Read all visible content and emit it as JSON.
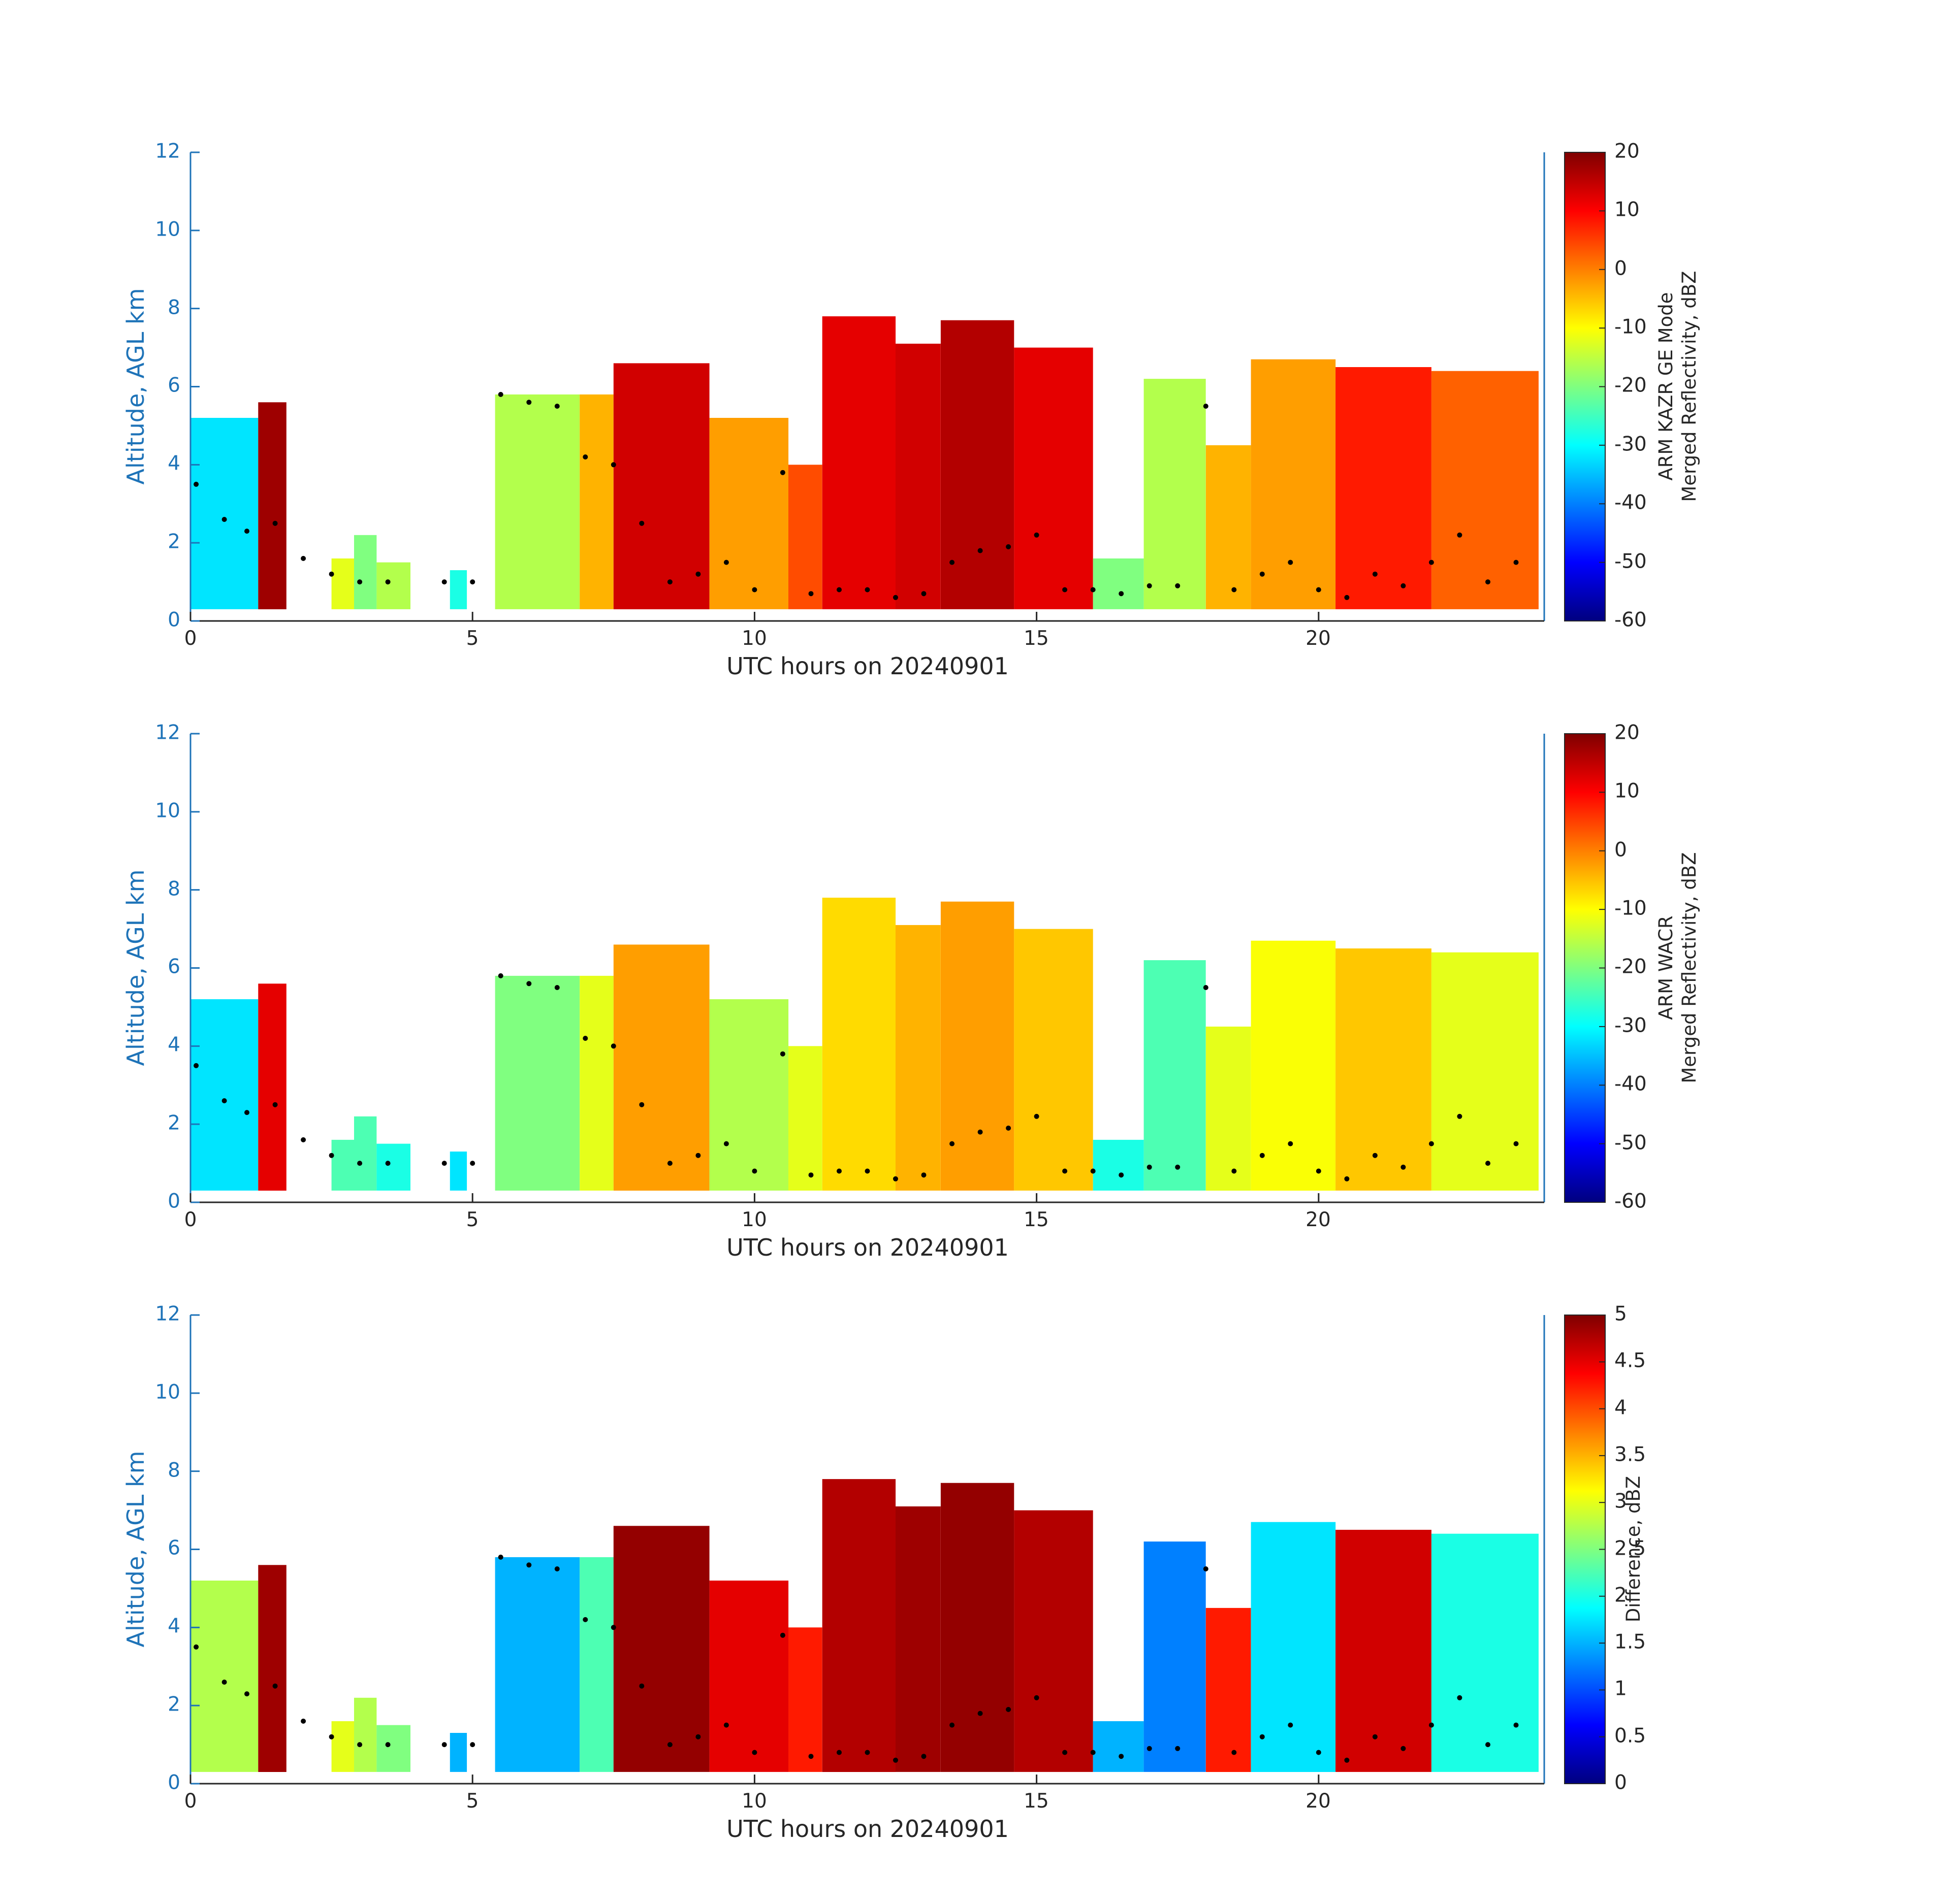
{
  "colors": {
    "axis_y": "#1e73b8",
    "axis_x": "#262626",
    "cloud_base_marker": "#000000",
    "colormap": "jet"
  },
  "chart_data": [
    {
      "type": "heatmap",
      "panel": "top",
      "xlabel": "UTC hours on 20240901",
      "ylabel": "Altitude, AGL km",
      "xlim": [
        0,
        24
      ],
      "ylim": [
        0,
        12
      ],
      "xticks": [
        "0",
        "5",
        "10",
        "15",
        "20"
      ],
      "yticks": [
        "0",
        "2",
        "4",
        "6",
        "8",
        "10",
        "12"
      ],
      "colorbar": {
        "label_lines": [
          "ARM KAZR GE Mode",
          "Merged Reflectivity, dBZ"
        ],
        "range": [
          -60,
          20
        ],
        "ticks": [
          "20",
          "10",
          "0",
          "-10",
          "-20",
          "-30",
          "-40",
          "-50",
          "-60"
        ]
      },
      "cloud_segments": [
        {
          "x": [
            0.0,
            1.2
          ],
          "top_km": 5.2,
          "value": 0.35
        },
        {
          "x": [
            1.2,
            1.7
          ],
          "top_km": 5.6,
          "value": 0.97
        },
        {
          "x": [
            2.5,
            2.9
          ],
          "top_km": 1.6,
          "value": 0.6
        },
        {
          "x": [
            2.9,
            3.3
          ],
          "top_km": 2.2,
          "value": 0.5
        },
        {
          "x": [
            3.3,
            3.9
          ],
          "top_km": 1.5,
          "value": 0.55
        },
        {
          "x": [
            4.6,
            4.9
          ],
          "top_km": 1.3,
          "value": 0.4
        },
        {
          "x": [
            5.4,
            6.9
          ],
          "top_km": 5.8,
          "value": 0.55
        },
        {
          "x": [
            6.9,
            7.5
          ],
          "top_km": 5.8,
          "value": 0.7
        },
        {
          "x": [
            7.5,
            9.2
          ],
          "top_km": 6.6,
          "value": 0.92
        },
        {
          "x": [
            9.2,
            10.6
          ],
          "top_km": 5.2,
          "value": 0.72
        },
        {
          "x": [
            10.6,
            11.2
          ],
          "top_km": 4.0,
          "value": 0.8
        },
        {
          "x": [
            11.2,
            12.5
          ],
          "top_km": 7.8,
          "value": 0.9
        },
        {
          "x": [
            12.5,
            13.3
          ],
          "top_km": 7.1,
          "value": 0.92
        },
        {
          "x": [
            13.3,
            14.6
          ],
          "top_km": 7.7,
          "value": 0.95
        },
        {
          "x": [
            14.6,
            16.0
          ],
          "top_km": 7.0,
          "value": 0.9
        },
        {
          "x": [
            16.0,
            16.9
          ],
          "top_km": 1.6,
          "value": 0.5
        },
        {
          "x": [
            16.9,
            18.0
          ],
          "top_km": 6.2,
          "value": 0.55
        },
        {
          "x": [
            18.0,
            18.8
          ],
          "top_km": 4.5,
          "value": 0.7
        },
        {
          "x": [
            18.8,
            20.3
          ],
          "top_km": 6.7,
          "value": 0.72
        },
        {
          "x": [
            20.3,
            22.0
          ],
          "top_km": 6.5,
          "value": 0.85
        },
        {
          "x": [
            22.0,
            23.9
          ],
          "top_km": 6.4,
          "value": 0.78
        }
      ]
    },
    {
      "type": "heatmap",
      "panel": "middle",
      "xlabel": "UTC hours on 20240901",
      "ylabel": "Altitude, AGL km",
      "xlim": [
        0,
        24
      ],
      "ylim": [
        0,
        12
      ],
      "xticks": [
        "0",
        "5",
        "10",
        "15",
        "20"
      ],
      "yticks": [
        "0",
        "2",
        "4",
        "6",
        "8",
        "10",
        "12"
      ],
      "colorbar": {
        "label_lines": [
          "ARM WACR",
          "Merged Reflectivity, dBZ"
        ],
        "range": [
          -60,
          20
        ],
        "ticks": [
          "20",
          "10",
          "0",
          "-10",
          "-20",
          "-30",
          "-40",
          "-50",
          "-60"
        ]
      },
      "cloud_segments": [
        {
          "x": [
            0.0,
            1.2
          ],
          "top_km": 5.2,
          "value": 0.35
        },
        {
          "x": [
            1.2,
            1.7
          ],
          "top_km": 5.6,
          "value": 0.9
        },
        {
          "x": [
            2.5,
            2.9
          ],
          "top_km": 1.6,
          "value": 0.45
        },
        {
          "x": [
            2.9,
            3.3
          ],
          "top_km": 2.2,
          "value": 0.45
        },
        {
          "x": [
            3.3,
            3.9
          ],
          "top_km": 1.5,
          "value": 0.4
        },
        {
          "x": [
            4.6,
            4.9
          ],
          "top_km": 1.3,
          "value": 0.35
        },
        {
          "x": [
            5.4,
            6.9
          ],
          "top_km": 5.8,
          "value": 0.5
        },
        {
          "x": [
            6.9,
            7.5
          ],
          "top_km": 5.8,
          "value": 0.6
        },
        {
          "x": [
            7.5,
            9.2
          ],
          "top_km": 6.6,
          "value": 0.72
        },
        {
          "x": [
            9.2,
            10.6
          ],
          "top_km": 5.2,
          "value": 0.55
        },
        {
          "x": [
            10.6,
            11.2
          ],
          "top_km": 4.0,
          "value": 0.6
        },
        {
          "x": [
            11.2,
            12.5
          ],
          "top_km": 7.8,
          "value": 0.66
        },
        {
          "x": [
            12.5,
            13.3
          ],
          "top_km": 7.1,
          "value": 0.7
        },
        {
          "x": [
            13.3,
            14.6
          ],
          "top_km": 7.7,
          "value": 0.72
        },
        {
          "x": [
            14.6,
            16.0
          ],
          "top_km": 7.0,
          "value": 0.68
        },
        {
          "x": [
            16.0,
            16.9
          ],
          "top_km": 1.6,
          "value": 0.4
        },
        {
          "x": [
            16.9,
            18.0
          ],
          "top_km": 6.2,
          "value": 0.45
        },
        {
          "x": [
            18.0,
            18.8
          ],
          "top_km": 4.5,
          "value": 0.6
        },
        {
          "x": [
            18.8,
            20.3
          ],
          "top_km": 6.7,
          "value": 0.62
        },
        {
          "x": [
            20.3,
            22.0
          ],
          "top_km": 6.5,
          "value": 0.68
        },
        {
          "x": [
            22.0,
            23.9
          ],
          "top_km": 6.4,
          "value": 0.6
        }
      ]
    },
    {
      "type": "heatmap",
      "panel": "bottom",
      "xlabel": "UTC hours on 20240901",
      "ylabel": "Altitude, AGL km",
      "xlim": [
        0,
        24
      ],
      "ylim": [
        0,
        12
      ],
      "xticks": [
        "0",
        "5",
        "10",
        "15",
        "20"
      ],
      "yticks": [
        "0",
        "2",
        "4",
        "6",
        "8",
        "10",
        "12"
      ],
      "colorbar": {
        "label_lines": [
          "Difference, dBZ"
        ],
        "range": [
          0,
          5
        ],
        "ticks": [
          "5",
          "4.5",
          "4",
          "3.5",
          "3",
          "2.5",
          "2",
          "1.5",
          "1",
          "0.5",
          "0"
        ]
      },
      "cloud_segments": [
        {
          "x": [
            0.0,
            1.2
          ],
          "top_km": 5.2,
          "value": 0.55
        },
        {
          "x": [
            1.2,
            1.7
          ],
          "top_km": 5.6,
          "value": 0.97
        },
        {
          "x": [
            2.5,
            2.9
          ],
          "top_km": 1.6,
          "value": 0.6
        },
        {
          "x": [
            2.9,
            3.3
          ],
          "top_km": 2.2,
          "value": 0.55
        },
        {
          "x": [
            3.3,
            3.9
          ],
          "top_km": 1.5,
          "value": 0.5
        },
        {
          "x": [
            4.6,
            4.9
          ],
          "top_km": 1.3,
          "value": 0.3
        },
        {
          "x": [
            5.4,
            6.9
          ],
          "top_km": 5.8,
          "value": 0.3
        },
        {
          "x": [
            6.9,
            7.5
          ],
          "top_km": 5.8,
          "value": 0.45
        },
        {
          "x": [
            7.5,
            9.2
          ],
          "top_km": 6.6,
          "value": 0.98
        },
        {
          "x": [
            9.2,
            10.6
          ],
          "top_km": 5.2,
          "value": 0.9
        },
        {
          "x": [
            10.6,
            11.2
          ],
          "top_km": 4.0,
          "value": 0.85
        },
        {
          "x": [
            11.2,
            12.5
          ],
          "top_km": 7.8,
          "value": 0.95
        },
        {
          "x": [
            12.5,
            13.3
          ],
          "top_km": 7.1,
          "value": 0.97
        },
        {
          "x": [
            13.3,
            14.6
          ],
          "top_km": 7.7,
          "value": 0.98
        },
        {
          "x": [
            14.6,
            16.0
          ],
          "top_km": 7.0,
          "value": 0.95
        },
        {
          "x": [
            16.0,
            16.9
          ],
          "top_km": 1.6,
          "value": 0.3
        },
        {
          "x": [
            16.9,
            18.0
          ],
          "top_km": 6.2,
          "value": 0.25
        },
        {
          "x": [
            18.0,
            18.8
          ],
          "top_km": 4.5,
          "value": 0.85
        },
        {
          "x": [
            18.8,
            20.3
          ],
          "top_km": 6.7,
          "value": 0.35
        },
        {
          "x": [
            20.3,
            22.0
          ],
          "top_km": 6.5,
          "value": 0.92
        },
        {
          "x": [
            22.0,
            23.9
          ],
          "top_km": 6.4,
          "value": 0.4
        }
      ]
    }
  ],
  "cloud_base_km": {
    "x": [
      0.1,
      0.6,
      1.0,
      1.5,
      2.0,
      2.5,
      3.0,
      3.5,
      4.5,
      5.0,
      5.5,
      6.0,
      6.5,
      7.0,
      7.5,
      8.0,
      8.5,
      9.0,
      9.5,
      10.0,
      10.5,
      11.0,
      11.5,
      12.0,
      12.5,
      13.0,
      13.5,
      14.0,
      14.5,
      15.0,
      15.5,
      16.0,
      16.5,
      17.0,
      17.5,
      18.0,
      18.5,
      19.0,
      19.5,
      20.0,
      20.5,
      21.0,
      21.5,
      22.0,
      22.5,
      23.0,
      23.5
    ],
    "y": [
      3.5,
      2.6,
      2.3,
      2.5,
      1.6,
      1.2,
      1.0,
      1.0,
      1.0,
      1.0,
      5.8,
      5.6,
      5.5,
      4.2,
      4.0,
      2.5,
      1.0,
      1.2,
      1.5,
      0.8,
      3.8,
      0.7,
      0.8,
      0.8,
      0.6,
      0.7,
      1.5,
      1.8,
      1.9,
      2.2,
      0.8,
      0.8,
      0.7,
      0.9,
      0.9,
      5.5,
      0.8,
      1.2,
      1.5,
      0.8,
      0.6,
      1.2,
      0.9,
      1.5,
      2.2,
      1.0,
      1.5
    ]
  }
}
